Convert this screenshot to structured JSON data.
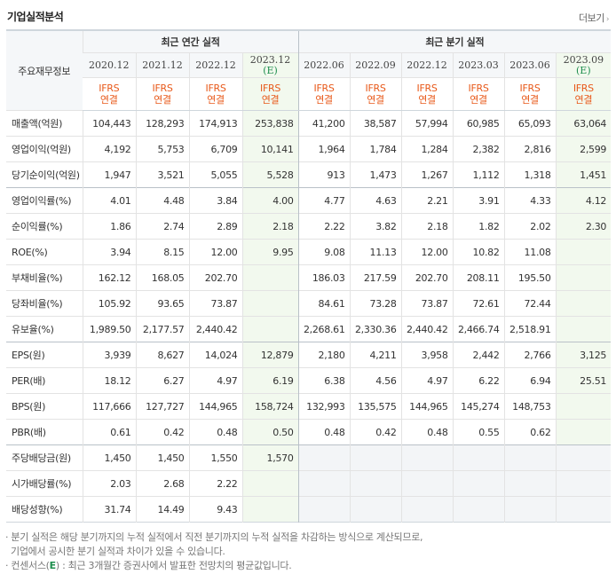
{
  "header": {
    "title": "기업실적분석",
    "more": "더보기"
  },
  "table": {
    "rowhead_title": "주요재무정보",
    "annual_title": "최근 연간 실적",
    "quarter_title": "최근 분기 실적",
    "annual_periods": [
      "2020.12",
      "2021.12",
      "2022.12"
    ],
    "annual_est": {
      "period": "2023.12",
      "tag": "(E)"
    },
    "quarter_periods": [
      "2022.06",
      "2022.09",
      "2022.12",
      "2023.03",
      "2023.06"
    ],
    "quarter_est": {
      "period": "2023.09",
      "tag": "(E)"
    },
    "ifrs": {
      "line1": "IFRS",
      "line2": "연결"
    },
    "rows": [
      {
        "label": "매출액(억원)",
        "values": [
          "104,443",
          "128,293",
          "174,913",
          "253,838",
          "41,200",
          "38,587",
          "57,994",
          "60,985",
          "65,093",
          "63,064"
        ]
      },
      {
        "label": "영업이익(억원)",
        "values": [
          "4,192",
          "5,753",
          "6,709",
          "10,141",
          "1,964",
          "1,784",
          "1,284",
          "2,382",
          "2,816",
          "2,599"
        ]
      },
      {
        "label": "당기순이익(억원)",
        "values": [
          "1,947",
          "3,521",
          "5,055",
          "5,528",
          "913",
          "1,473",
          "1,267",
          "1,112",
          "1,318",
          "1,451"
        ]
      },
      {
        "label": "영업이익률(%)",
        "values": [
          "4.01",
          "4.48",
          "3.84",
          "4.00",
          "4.77",
          "4.63",
          "2.21",
          "3.91",
          "4.33",
          "4.12"
        ]
      },
      {
        "label": "순이익률(%)",
        "values": [
          "1.86",
          "2.74",
          "2.89",
          "2.18",
          "2.22",
          "3.82",
          "2.18",
          "1.82",
          "2.02",
          "2.30"
        ]
      },
      {
        "label": "ROE(%)",
        "values": [
          "3.94",
          "8.15",
          "12.00",
          "9.95",
          "9.08",
          "11.13",
          "12.00",
          "10.82",
          "11.08",
          ""
        ]
      },
      {
        "label": "부채비율(%)",
        "values": [
          "162.12",
          "168.05",
          "202.70",
          "",
          "186.03",
          "217.59",
          "202.70",
          "208.11",
          "195.50",
          ""
        ]
      },
      {
        "label": "당좌비율(%)",
        "values": [
          "105.92",
          "93.65",
          "73.87",
          "",
          "84.61",
          "73.28",
          "73.87",
          "72.61",
          "72.44",
          ""
        ]
      },
      {
        "label": "유보율(%)",
        "values": [
          "1,989.50",
          "2,177.57",
          "2,440.42",
          "",
          "2,268.61",
          "2,330.36",
          "2,440.42",
          "2,466.74",
          "2,518.91",
          ""
        ]
      },
      {
        "label": "EPS(원)",
        "values": [
          "3,939",
          "8,627",
          "14,024",
          "12,879",
          "2,180",
          "4,211",
          "3,958",
          "2,442",
          "2,766",
          "3,125"
        ]
      },
      {
        "label": "PER(배)",
        "values": [
          "18.12",
          "6.27",
          "4.97",
          "6.19",
          "6.38",
          "4.56",
          "4.97",
          "6.22",
          "6.94",
          "25.51"
        ]
      },
      {
        "label": "BPS(원)",
        "values": [
          "117,666",
          "127,727",
          "144,965",
          "158,724",
          "132,993",
          "135,575",
          "144,965",
          "145,274",
          "148,753",
          ""
        ]
      },
      {
        "label": "PBR(배)",
        "values": [
          "0.61",
          "0.42",
          "0.48",
          "0.50",
          "0.48",
          "0.42",
          "0.48",
          "0.55",
          "0.62",
          ""
        ]
      },
      {
        "label": "주당배당금(원)",
        "values": [
          "1,450",
          "1,450",
          "1,550",
          "1,570",
          "",
          "",
          "",
          "",
          "",
          ""
        ]
      },
      {
        "label": "시가배당률(%)",
        "values": [
          "2.03",
          "2.68",
          "2.22",
          "",
          "",
          "",
          "",
          "",
          "",
          ""
        ]
      },
      {
        "label": "배당성향(%)",
        "values": [
          "31.74",
          "14.49",
          "9.43",
          "",
          "",
          "",
          "",
          "",
          "",
          ""
        ]
      }
    ]
  },
  "notes": {
    "note1": "· 분기 실적은 해당 분기까지의 누적 실적에서 직전 분기까지의 누적 실적을 차감하는 방식으로 계산되므로,",
    "note1b": "기업에서 공시한 분기 실적과 차이가 있을 수 있습니다.",
    "note2_prefix": "· 컨센서스(",
    "note2_em": "E",
    "note2_suffix": ") : 최근 3개월간 증권사에서 발표한 전망치의 평균값입니다."
  }
}
